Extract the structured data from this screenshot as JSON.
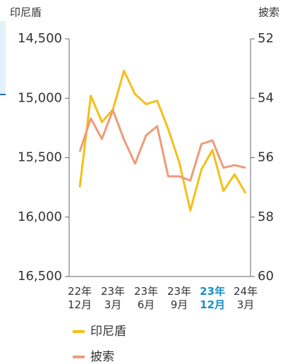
{
  "chart_data": {
    "type": "line",
    "y_label": "印尼盾",
    "y2_label": "披索",
    "categories": [
      "22年\n12月",
      null,
      null,
      "23年\n3月",
      null,
      null,
      "23年\n6月",
      null,
      null,
      "23年\n9月",
      null,
      null,
      "23年\n12月",
      null,
      null,
      "24年\n3月"
    ],
    "highlight": {
      "index": 12,
      "color": "#1a8fc9"
    },
    "series": [
      {
        "name": "印尼盾",
        "color": "#f5bf17",
        "axis": "y",
        "values": [
          15750,
          14980,
          15200,
          15095,
          14770,
          14965,
          15050,
          15020,
          15260,
          15540,
          15945,
          15600,
          15435,
          15780,
          15640,
          15800
        ]
      },
      {
        "name": "披索",
        "color": "#ef9a7a",
        "axis": "y2",
        "values": [
          55.8,
          54.68,
          55.37,
          54.4,
          55.39,
          56.2,
          55.25,
          54.94,
          56.63,
          56.63,
          56.77,
          55.54,
          55.42,
          56.34,
          56.25,
          56.34
        ]
      }
    ],
    "ylim": [
      14500,
      16500
    ],
    "y_inverted": true,
    "yticks": [
      {
        "value": 14500,
        "label": "14,500"
      },
      {
        "value": 15000,
        "label": "15,000"
      },
      {
        "value": 15500,
        "label": "15,500"
      },
      {
        "value": 16000,
        "label": "16,000"
      },
      {
        "value": 16500,
        "label": "16,500"
      }
    ],
    "y2lim": [
      52,
      60
    ],
    "y2_inverted": true,
    "y2ticks": [
      52,
      54,
      56,
      58,
      60
    ]
  }
}
